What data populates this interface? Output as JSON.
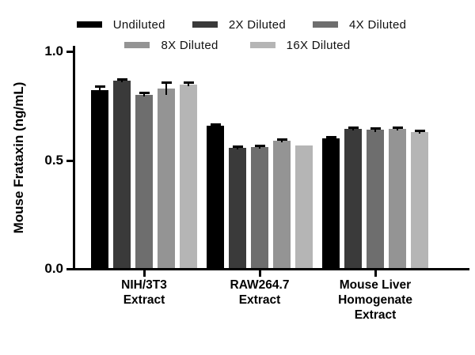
{
  "chart_data": {
    "type": "bar",
    "title": "",
    "xlabel": "",
    "ylabel": "Mouse Frataxin (ng/mL)",
    "ylim": [
      0.0,
      1.0
    ],
    "yticks": [
      0.0,
      0.5,
      1.0
    ],
    "ytick_labels": [
      "0.0",
      "0.5",
      "1.0"
    ],
    "grid": false,
    "legend_position": "top",
    "error_bars": "sd, shown as black caps above bars",
    "categories": [
      "NIH/3T3 Extract",
      "RAW264.7 Extract",
      "Mouse Liver Homogenate Extract"
    ],
    "category_lines": [
      [
        "NIH/3T3",
        "Extract"
      ],
      [
        "RAW264.7",
        "Extract"
      ],
      [
        "Mouse Liver",
        "Homogenate",
        "Extract"
      ]
    ],
    "series": [
      {
        "name": "Undiluted",
        "color": "#000000",
        "values": [
          0.82,
          0.655,
          0.595
        ],
        "errors": [
          0.015,
          0.008,
          0.008
        ]
      },
      {
        "name": "2X Diluted",
        "color": "#3a3a3a",
        "values": [
          0.862,
          0.552,
          0.64
        ],
        "errors": [
          0.008,
          0.008,
          0.008
        ]
      },
      {
        "name": "4X Diluted",
        "color": "#6e6e6e",
        "values": [
          0.798,
          0.557,
          0.635
        ],
        "errors": [
          0.008,
          0.008,
          0.008
        ]
      },
      {
        "name": "8X Diluted",
        "color": "#949494",
        "values": [
          0.825,
          0.585,
          0.64
        ],
        "errors": [
          0.028,
          0.008,
          0.008
        ]
      },
      {
        "name": "16X Diluted",
        "color": "#b5b5b5",
        "values": [
          0.845,
          0.565,
          0.625
        ],
        "errors": [
          0.01,
          0.0,
          0.008
        ]
      }
    ],
    "legend_rows": [
      [
        0,
        1,
        2
      ],
      [
        3,
        4
      ]
    ]
  }
}
